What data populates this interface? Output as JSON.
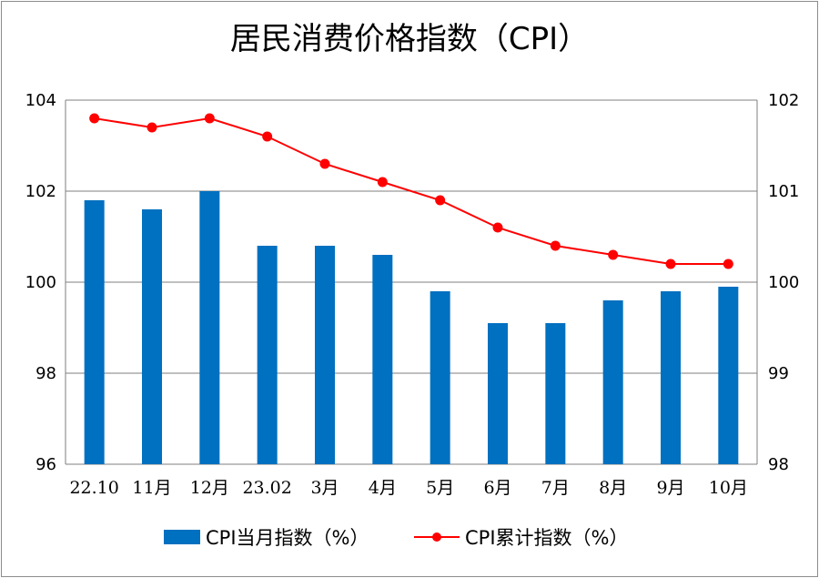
{
  "chart_data": {
    "type": "bar+line",
    "title": "居民消费价格指数（CPI）",
    "categories": [
      "22.10",
      "11月",
      "12月",
      "23.02",
      "3月",
      "4月",
      "5月",
      "6月",
      "7月",
      "8月",
      "9月",
      "10月"
    ],
    "series": [
      {
        "name": "CPI当月指数（%）",
        "type": "bar",
        "axis": "left",
        "color": "#0070c0",
        "values": [
          101.8,
          101.6,
          102.0,
          100.8,
          100.8,
          100.6,
          99.8,
          99.1,
          99.1,
          99.6,
          99.8,
          99.9
        ]
      },
      {
        "name": "CPI累计指数（%）",
        "type": "line",
        "axis": "right",
        "color": "#ff0000",
        "values": [
          101.8,
          101.7,
          101.8,
          101.6,
          101.3,
          101.1,
          100.9,
          100.6,
          100.4,
          100.3,
          100.2,
          100.2
        ]
      }
    ],
    "y_left": {
      "min": 96,
      "max": 104,
      "ticks": [
        "96",
        "98",
        "100",
        "102",
        "104"
      ]
    },
    "y_right": {
      "min": 98,
      "max": 102,
      "ticks": [
        "98",
        "99",
        "100",
        "101",
        "102"
      ]
    },
    "grid": true,
    "legend_position": "bottom"
  }
}
